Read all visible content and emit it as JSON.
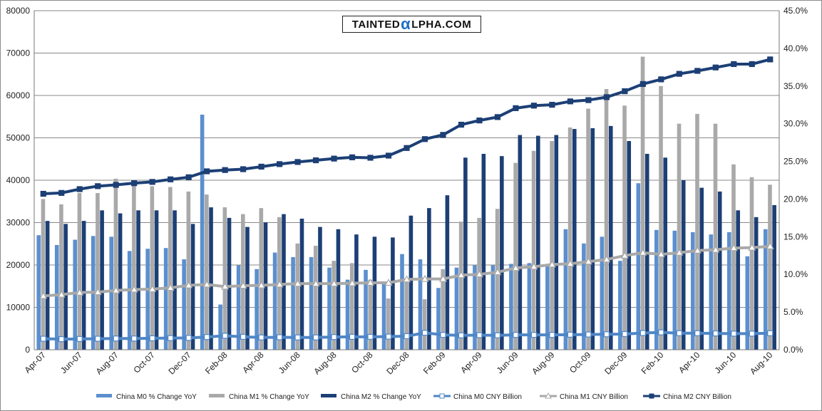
{
  "watermark": {
    "left": "Tainted",
    "alpha": "α",
    "right": "lpha.com"
  },
  "chart_data": {
    "type": "bar",
    "combo": "bars-on-right-axis + lines-on-left-axis",
    "categories": [
      "Apr-07",
      "May-07",
      "Jun-07",
      "Jul-07",
      "Aug-07",
      "Sep-07",
      "Oct-07",
      "Nov-07",
      "Dec-07",
      "Jan-08",
      "Feb-08",
      "Mar-08",
      "Apr-08",
      "May-08",
      "Jun-08",
      "Jul-08",
      "Aug-08",
      "Sep-08",
      "Oct-08",
      "Nov-08",
      "Dec-08",
      "Jan-09",
      "Feb-09",
      "Mar-09",
      "Apr-09",
      "May-09",
      "Jun-09",
      "Jul-09",
      "Aug-09",
      "Sep-09",
      "Oct-09",
      "Nov-09",
      "Dec-09",
      "Jan-10",
      "Feb-10",
      "Mar-10",
      "Apr-10",
      "May-10",
      "Jun-10",
      "Jul-10",
      "Aug-10"
    ],
    "x_tick_labels": [
      "Apr-07",
      "Jun-07",
      "Aug-07",
      "Oct-07",
      "Dec-07",
      "Feb-08",
      "Apr-08",
      "Jun-08",
      "Aug-08",
      "Oct-08",
      "Dec-08",
      "Feb-09",
      "Apr-09",
      "Jun-09",
      "Aug-09",
      "Oct-09",
      "Dec-09",
      "Feb-10",
      "Apr-10",
      "Jun-10",
      "Aug-10"
    ],
    "left_axis": {
      "min": 0,
      "max": 80000,
      "step": 10000,
      "ticks": [
        "0",
        "10000",
        "20000",
        "30000",
        "40000",
        "50000",
        "60000",
        "70000",
        "80000"
      ]
    },
    "right_axis": {
      "min": 0,
      "max": 45,
      "step": 5,
      "ticks": [
        "0.0%",
        "5.0%",
        "10.0%",
        "15.0%",
        "20.0%",
        "25.0%",
        "30.0%",
        "35.0%",
        "40.0%",
        "45.0%"
      ]
    },
    "grid": true,
    "legend_position": "bottom",
    "series": [
      {
        "name": "China M0 % Change YoY",
        "kind": "bar",
        "axis": "right",
        "color": "#5b8fcf",
        "values": [
          15.2,
          13.9,
          14.6,
          15.1,
          15.0,
          13.1,
          13.4,
          13.5,
          12.0,
          31.2,
          6.0,
          11.2,
          10.7,
          12.9,
          12.3,
          12.3,
          10.9,
          9.3,
          10.6,
          8.8,
          12.7,
          12.0,
          8.2,
          10.9,
          11.2,
          11.2,
          11.4,
          11.5,
          11.1,
          16.0,
          14.1,
          15.0,
          11.8,
          22.1,
          15.9,
          15.8,
          15.6,
          15.3,
          15.6,
          12.4,
          16.0
        ]
      },
      {
        "name": "China M1 % Change YoY",
        "kind": "bar",
        "axis": "right",
        "color": "#a9a9a9",
        "values": [
          20.0,
          19.3,
          20.8,
          20.8,
          22.7,
          21.8,
          21.7,
          21.6,
          21.0,
          20.6,
          18.9,
          18.0,
          18.8,
          17.6,
          14.1,
          13.8,
          11.8,
          11.5,
          9.3,
          6.8,
          9.1,
          6.7,
          10.7,
          17.0,
          17.5,
          18.7,
          24.8,
          26.4,
          27.7,
          29.5,
          32.0,
          34.6,
          32.4,
          38.9,
          35.0,
          30.0,
          31.3,
          30.0,
          24.6,
          22.9,
          21.9
        ]
      },
      {
        "name": "China M2 % Change YoY",
        "kind": "bar",
        "axis": "right",
        "color": "#1c3f75",
        "values": [
          17.1,
          16.7,
          17.1,
          18.5,
          18.1,
          18.5,
          18.5,
          18.5,
          16.7,
          18.9,
          17.5,
          16.3,
          16.9,
          18.0,
          17.4,
          16.3,
          16.0,
          15.3,
          15.0,
          14.9,
          17.8,
          18.8,
          20.5,
          25.5,
          26.0,
          25.7,
          28.5,
          28.4,
          28.5,
          29.3,
          29.4,
          29.7,
          27.7,
          26.0,
          25.5,
          22.5,
          21.5,
          21.0,
          18.5,
          17.6,
          19.2
        ]
      },
      {
        "name": "China M0 CNY Billion",
        "kind": "line",
        "axis": "left",
        "color": "#4f86c6",
        "marker": "square",
        "values": [
          2600,
          2500,
          2550,
          2600,
          2650,
          2650,
          2700,
          2750,
          2800,
          3000,
          3300,
          3050,
          2900,
          2950,
          2900,
          2900,
          3000,
          3050,
          3050,
          3100,
          3200,
          4000,
          3500,
          3400,
          3450,
          3400,
          3500,
          3500,
          3500,
          3550,
          3600,
          3650,
          3700,
          3950,
          4100,
          3900,
          3900,
          3850,
          3800,
          3800,
          3900
        ]
      },
      {
        "name": "China M1 CNY Billion",
        "kind": "line",
        "axis": "left",
        "color": "#a9a9a9",
        "marker": "triangle",
        "values": [
          12700,
          13000,
          13500,
          13600,
          14000,
          14200,
          14300,
          14600,
          15200,
          15400,
          14900,
          15100,
          15200,
          15400,
          15600,
          15600,
          15600,
          15700,
          15800,
          15800,
          16600,
          16700,
          16700,
          17600,
          17800,
          18300,
          19300,
          19600,
          20100,
          20300,
          20800,
          21300,
          22200,
          22900,
          22500,
          22900,
          23400,
          23600,
          24000,
          24100,
          24400
        ]
      },
      {
        "name": "China M2 CNY Billion",
        "kind": "line",
        "axis": "left",
        "color": "#1c3f75",
        "marker": "square",
        "values": [
          36800,
          37000,
          37900,
          38600,
          38900,
          39300,
          39600,
          40200,
          40700,
          42100,
          42400,
          42600,
          43200,
          43800,
          44300,
          44700,
          45100,
          45400,
          45300,
          45800,
          47600,
          49700,
          50700,
          53100,
          54100,
          54900,
          57000,
          57600,
          57800,
          58600,
          58900,
          59600,
          61000,
          62700,
          63800,
          65100,
          65800,
          66600,
          67400,
          67400,
          68500
        ]
      }
    ]
  }
}
